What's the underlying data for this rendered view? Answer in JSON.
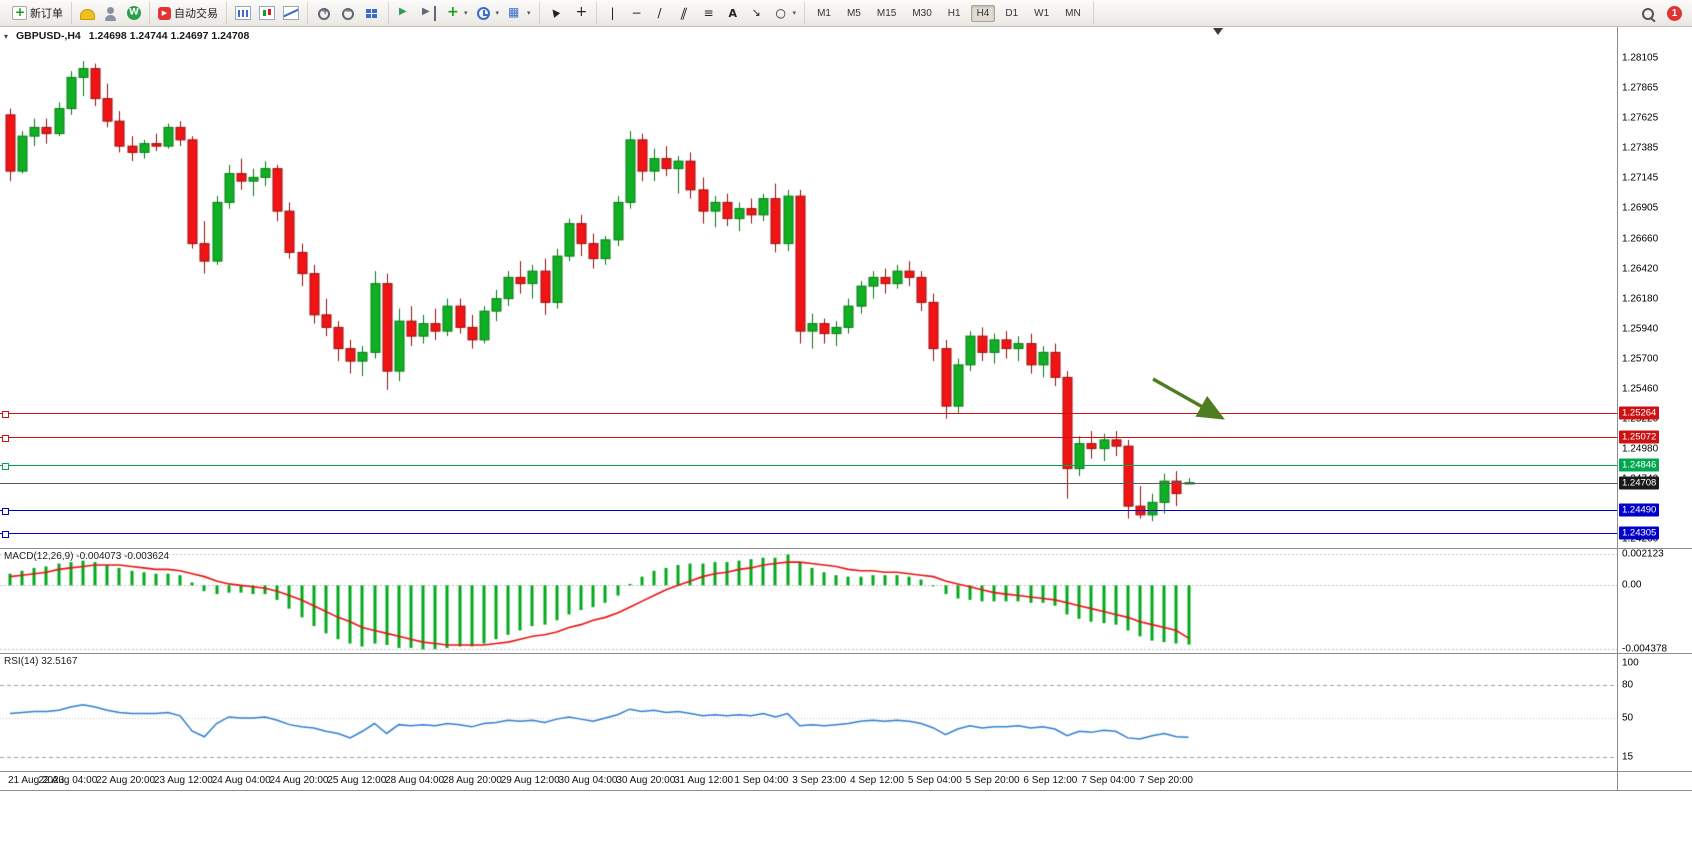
{
  "toolbar": {
    "groups": [
      [
        {
          "icon": "new-order-icon",
          "label": "新订单"
        }
      ],
      [
        {
          "icon": "hat-icon"
        },
        {
          "icon": "profile-icon"
        },
        {
          "icon": "community-icon"
        }
      ],
      [
        {
          "icon": "autotrade-icon",
          "label": "自动交易"
        }
      ],
      [
        {
          "icon": "chart-bars-icon"
        },
        {
          "icon": "chart-candles-icon"
        },
        {
          "icon": "chart-line-icon"
        }
      ],
      [
        {
          "icon": "zoom-in-icon"
        },
        {
          "icon": "zoom-out-icon"
        },
        {
          "icon": "tile-windows-icon"
        }
      ],
      [
        {
          "icon": "auto-scroll-icon"
        },
        {
          "icon": "chart-shift-icon"
        },
        {
          "icon": "indicators-icon",
          "caret": true
        },
        {
          "icon": "clock-icon",
          "caret": true
        },
        {
          "icon": "templates-icon",
          "caret": true
        }
      ],
      [
        {
          "icon": "cursor-icon"
        },
        {
          "icon": "crosshair-icon"
        }
      ],
      [
        {
          "icon": "vline-icon"
        },
        {
          "icon": "hline-icon"
        },
        {
          "icon": "trendline-icon"
        },
        {
          "icon": "channel-icon"
        },
        {
          "icon": "fibo-icon"
        },
        {
          "icon": "text-icon"
        },
        {
          "icon": "label-icon"
        },
        {
          "icon": "shapes-icon",
          "caret": true
        }
      ]
    ],
    "timeframes": {
      "items": [
        "M1",
        "M5",
        "M15",
        "M30",
        "H1",
        "H4",
        "D1",
        "W1",
        "MN"
      ],
      "active": "H4"
    },
    "search_icon": "search-icon",
    "badge": "1"
  },
  "chart_data": {
    "type": "candlestick",
    "symbol": "GBPUSD-",
    "timeframe": "H4",
    "title": "GBPUSD-,H4",
    "ohlc_text": "1.24698 1.24744 1.24697 1.24708",
    "price_ylim": [
      1.28353,
      1.24185
    ],
    "price_ticks": [
      "1.28105",
      "1.27865",
      "1.27625",
      "1.27385",
      "1.27145",
      "1.26905",
      "1.26660",
      "1.26420",
      "1.26180",
      "1.25940",
      "1.25700",
      "1.25460",
      "1.25220",
      "1.24980",
      "1.24740",
      "1.24500",
      "1.24260"
    ],
    "price_tags": [
      {
        "text": "1.25264",
        "bg": "#cc1111"
      },
      {
        "text": "1.25072",
        "bg": "#cc1111"
      },
      {
        "text": "1.24846",
        "bg": "#00a650"
      },
      {
        "text": "1.24708",
        "bg": "#1a1a1a"
      },
      {
        "text": "1.24490",
        "bg": "#0000c8"
      },
      {
        "text": "1.24305",
        "bg": "#0000c8"
      }
    ],
    "hlines": [
      {
        "price": 1.25264,
        "color": "#cc1111"
      },
      {
        "price": 1.25072,
        "color": "#cc1111"
      },
      {
        "price": 1.24846,
        "color": "#00a650"
      },
      {
        "price": 1.24708,
        "color": "#5a5a5a",
        "bid": true
      },
      {
        "price": 1.2449,
        "color": "#0000c8"
      },
      {
        "price": 1.24305,
        "color": "#0000c8"
      }
    ],
    "arrow_color": "#4e7c1e",
    "candles": [
      [
        1.2765,
        1.277,
        1.2712,
        1.272
      ],
      [
        1.272,
        1.2752,
        1.2718,
        1.2748
      ],
      [
        1.2748,
        1.2762,
        1.274,
        1.2755
      ],
      [
        1.2755,
        1.2762,
        1.2742,
        1.275
      ],
      [
        1.275,
        1.2775,
        1.2748,
        1.277
      ],
      [
        1.277,
        1.28,
        1.2765,
        1.2795
      ],
      [
        1.2795,
        1.2808,
        1.278,
        1.2802
      ],
      [
        1.2802,
        1.2806,
        1.2772,
        1.2778
      ],
      [
        1.2778,
        1.279,
        1.2755,
        1.276
      ],
      [
        1.276,
        1.2768,
        1.2735,
        1.274
      ],
      [
        1.274,
        1.2748,
        1.2728,
        1.2735
      ],
      [
        1.2735,
        1.2745,
        1.273,
        1.2742
      ],
      [
        1.2742,
        1.275,
        1.2736,
        1.274
      ],
      [
        1.274,
        1.2758,
        1.2738,
        1.2755
      ],
      [
        1.2755,
        1.276,
        1.274,
        1.2745
      ],
      [
        1.2745,
        1.2748,
        1.2658,
        1.2662
      ],
      [
        1.2662,
        1.268,
        1.2638,
        1.2648
      ],
      [
        1.2648,
        1.27,
        1.2645,
        1.2695
      ],
      [
        1.2695,
        1.2725,
        1.269,
        1.2718
      ],
      [
        1.2718,
        1.273,
        1.2705,
        1.2712
      ],
      [
        1.2712,
        1.2722,
        1.27,
        1.2715
      ],
      [
        1.2715,
        1.2728,
        1.2708,
        1.2722
      ],
      [
        1.2722,
        1.2725,
        1.268,
        1.2688
      ],
      [
        1.2688,
        1.2695,
        1.265,
        1.2655
      ],
      [
        1.2655,
        1.2662,
        1.2628,
        1.2638
      ],
      [
        1.2638,
        1.2645,
        1.2598,
        1.2605
      ],
      [
        1.2605,
        1.2618,
        1.2588,
        1.2595
      ],
      [
        1.2595,
        1.26,
        1.2568,
        1.2578
      ],
      [
        1.2578,
        1.2585,
        1.2558,
        1.2568
      ],
      [
        1.2568,
        1.258,
        1.2556,
        1.2575
      ],
      [
        1.2575,
        1.264,
        1.257,
        1.263
      ],
      [
        1.263,
        1.2638,
        1.2545,
        1.256
      ],
      [
        1.256,
        1.261,
        1.2552,
        1.26
      ],
      [
        1.26,
        1.2612,
        1.258,
        1.2588
      ],
      [
        1.2588,
        1.2605,
        1.2582,
        1.2598
      ],
      [
        1.2598,
        1.261,
        1.2585,
        1.2592
      ],
      [
        1.2592,
        1.2618,
        1.2588,
        1.2612
      ],
      [
        1.2612,
        1.2618,
        1.259,
        1.2595
      ],
      [
        1.2595,
        1.2605,
        1.2578,
        1.2585
      ],
      [
        1.2585,
        1.2612,
        1.2582,
        1.2608
      ],
      [
        1.2608,
        1.2625,
        1.26,
        1.2618
      ],
      [
        1.2618,
        1.264,
        1.2612,
        1.2635
      ],
      [
        1.2635,
        1.2648,
        1.2622,
        1.263
      ],
      [
        1.263,
        1.2645,
        1.2618,
        1.264
      ],
      [
        1.264,
        1.265,
        1.2605,
        1.2615
      ],
      [
        1.2615,
        1.2658,
        1.261,
        1.2652
      ],
      [
        1.2652,
        1.2682,
        1.2648,
        1.2678
      ],
      [
        1.2678,
        1.2685,
        1.2652,
        1.2662
      ],
      [
        1.2662,
        1.267,
        1.2642,
        1.265
      ],
      [
        1.265,
        1.2668,
        1.2645,
        1.2665
      ],
      [
        1.2665,
        1.27,
        1.266,
        1.2695
      ],
      [
        1.2695,
        1.2752,
        1.269,
        1.2745
      ],
      [
        1.2745,
        1.275,
        1.2712,
        1.272
      ],
      [
        1.272,
        1.2738,
        1.2712,
        1.273
      ],
      [
        1.273,
        1.274,
        1.2716,
        1.2722
      ],
      [
        1.2722,
        1.2732,
        1.2702,
        1.2728
      ],
      [
        1.2728,
        1.2735,
        1.2698,
        1.2705
      ],
      [
        1.2705,
        1.2715,
        1.2678,
        1.2688
      ],
      [
        1.2688,
        1.27,
        1.2675,
        1.2695
      ],
      [
        1.2695,
        1.2702,
        1.2676,
        1.2682
      ],
      [
        1.2682,
        1.2695,
        1.2672,
        1.269
      ],
      [
        1.269,
        1.2698,
        1.2678,
        1.2685
      ],
      [
        1.2685,
        1.2702,
        1.268,
        1.2698
      ],
      [
        1.2698,
        1.271,
        1.2655,
        1.2662
      ],
      [
        1.2662,
        1.2705,
        1.2656,
        1.27
      ],
      [
        1.27,
        1.2705,
        1.2582,
        1.2592
      ],
      [
        1.2592,
        1.2606,
        1.2578,
        1.2598
      ],
      [
        1.2598,
        1.2602,
        1.2582,
        1.259
      ],
      [
        1.259,
        1.26,
        1.258,
        1.2595
      ],
      [
        1.2595,
        1.2618,
        1.259,
        1.2612
      ],
      [
        1.2612,
        1.2632,
        1.2606,
        1.2628
      ],
      [
        1.2628,
        1.264,
        1.2618,
        1.2635
      ],
      [
        1.2635,
        1.2642,
        1.2622,
        1.263
      ],
      [
        1.263,
        1.2645,
        1.2626,
        1.264
      ],
      [
        1.264,
        1.2648,
        1.2628,
        1.2635
      ],
      [
        1.2635,
        1.264,
        1.2608,
        1.2615
      ],
      [
        1.2615,
        1.2622,
        1.2568,
        1.2578
      ],
      [
        1.2578,
        1.2585,
        1.2522,
        1.2532
      ],
      [
        1.2532,
        1.257,
        1.2526,
        1.2565
      ],
      [
        1.2565,
        1.2592,
        1.256,
        1.2588
      ],
      [
        1.2588,
        1.2595,
        1.2568,
        1.2575
      ],
      [
        1.2575,
        1.259,
        1.2566,
        1.2585
      ],
      [
        1.2585,
        1.2592,
        1.257,
        1.2578
      ],
      [
        1.2578,
        1.2588,
        1.2568,
        1.2582
      ],
      [
        1.2582,
        1.259,
        1.2558,
        1.2565
      ],
      [
        1.2565,
        1.258,
        1.2555,
        1.2575
      ],
      [
        1.2575,
        1.2582,
        1.2548,
        1.2555
      ],
      [
        1.2555,
        1.256,
        1.2458,
        1.2482
      ],
      [
        1.2482,
        1.2508,
        1.2476,
        1.2502
      ],
      [
        1.2502,
        1.2512,
        1.249,
        1.2498
      ],
      [
        1.2498,
        1.251,
        1.2488,
        1.2505
      ],
      [
        1.2505,
        1.2512,
        1.2492,
        1.25
      ],
      [
        1.25,
        1.2505,
        1.2442,
        1.2452
      ],
      [
        1.2452,
        1.2468,
        1.2442,
        1.2445
      ],
      [
        1.2445,
        1.2462,
        1.244,
        1.2455
      ],
      [
        1.2455,
        1.2478,
        1.2446,
        1.2472
      ],
      [
        1.2472,
        1.248,
        1.2452,
        1.2462
      ],
      [
        1.24698,
        1.24744,
        1.24697,
        1.24708
      ]
    ],
    "macd": {
      "label": "MACD(12,26,9) -0.004073 -0.003624",
      "axis": [
        "0.002123",
        "0.00",
        "-0.004378"
      ],
      "axis_values": [
        0.002123,
        0,
        -0.004378
      ],
      "ylim": [
        0.0025,
        -0.00465
      ],
      "histogram": [
        0.0008,
        0.001,
        0.0012,
        0.0013,
        0.0015,
        0.0016,
        0.0017,
        0.0016,
        0.0014,
        0.0012,
        0.001,
        0.0009,
        0.0008,
        0.0008,
        0.0007,
        0.0002,
        -0.0004,
        -0.0006,
        -0.0005,
        -0.0005,
        -0.0006,
        -0.0006,
        -0.001,
        -0.0016,
        -0.0022,
        -0.0028,
        -0.0033,
        -0.0037,
        -0.004,
        -0.0042,
        -0.004,
        -0.0041,
        -0.0043,
        -0.0043,
        -0.0044,
        -0.004378,
        -0.0043,
        -0.0042,
        -0.0042,
        -0.004,
        -0.0037,
        -0.0034,
        -0.0031,
        -0.0028,
        -0.0027,
        -0.0024,
        -0.002,
        -0.0017,
        -0.0015,
        -0.0012,
        -0.0007,
        0.0001,
        0.0006,
        0.001,
        0.0012,
        0.0014,
        0.0015,
        0.0015,
        0.0016,
        0.0016,
        0.0017,
        0.0018,
        0.0019,
        0.0019,
        0.002123,
        0.0016,
        0.0012,
        0.0009,
        0.0007,
        0.0006,
        0.0006,
        0.0007,
        0.0007,
        0.0007,
        0.0006,
        0.0004,
        0.0,
        -0.0006,
        -0.0009,
        -0.001,
        -0.0011,
        -0.0011,
        -0.0011,
        -0.0011,
        -0.0012,
        -0.0012,
        -0.0014,
        -0.002,
        -0.0023,
        -0.0025,
        -0.0026,
        -0.0027,
        -0.0031,
        -0.0035,
        -0.0038,
        -0.0039,
        -0.004,
        -0.004073
      ],
      "signal": [
        0.0006,
        0.0007,
        0.0008,
        0.0009,
        0.0011,
        0.0012,
        0.0013,
        0.0014,
        0.0014,
        0.0014,
        0.0013,
        0.0012,
        0.0011,
        0.0011,
        0.001,
        0.0008,
        0.0006,
        0.0003,
        0.0001,
        0.0,
        -0.0001,
        -0.0002,
        -0.0004,
        -0.0007,
        -0.001,
        -0.0014,
        -0.0018,
        -0.0022,
        -0.0025,
        -0.0029,
        -0.0031,
        -0.0033,
        -0.0035,
        -0.0037,
        -0.0039,
        -0.004,
        -0.0041,
        -0.0041,
        -0.0041,
        -0.0041,
        -0.004,
        -0.0039,
        -0.0037,
        -0.0035,
        -0.0034,
        -0.0032,
        -0.0029,
        -0.0027,
        -0.0024,
        -0.0022,
        -0.0019,
        -0.0015,
        -0.0011,
        -0.0007,
        -0.0003,
        0.0,
        0.0003,
        0.0006,
        0.0008,
        0.0009,
        0.0011,
        0.0012,
        0.0014,
        0.0015,
        0.0016,
        0.0016,
        0.0015,
        0.0014,
        0.0013,
        0.0011,
        0.001,
        0.001,
        0.0009,
        0.0009,
        0.0008,
        0.0007,
        0.0006,
        0.0003,
        0.0001,
        -0.0001,
        -0.0003,
        -0.0005,
        -0.0006,
        -0.0007,
        -0.0008,
        -0.0009,
        -0.001,
        -0.0012,
        -0.0014,
        -0.0016,
        -0.0018,
        -0.002,
        -0.0022,
        -0.0025,
        -0.0027,
        -0.0029,
        -0.0031,
        -0.003624
      ]
    },
    "rsi": {
      "label": "RSI(14) 32.5167",
      "axis": [
        "100",
        "80",
        "50",
        "15"
      ],
      "axis_values": [
        100,
        80,
        50,
        15
      ],
      "levels": [
        80,
        50,
        15
      ],
      "ylim": [
        108,
        2
      ],
      "values": [
        54,
        55,
        56,
        56,
        57,
        60,
        62,
        60,
        57,
        55,
        54,
        54,
        54,
        55,
        52,
        38,
        33,
        45,
        51,
        50,
        50,
        51,
        48,
        44,
        42,
        41,
        38,
        36,
        32,
        38,
        45,
        36,
        44,
        43,
        44,
        43,
        45,
        44,
        42,
        45,
        46,
        48,
        47,
        48,
        46,
        49,
        51,
        49,
        47,
        50,
        53,
        58,
        56,
        57,
        55,
        56,
        54,
        52,
        53,
        52,
        53,
        52,
        54,
        51,
        54,
        43,
        44,
        43,
        44,
        45,
        47,
        48,
        47,
        48,
        47,
        45,
        41,
        35,
        40,
        43,
        41,
        42,
        42,
        43,
        41,
        42,
        40,
        34,
        38,
        37,
        39,
        38,
        32,
        31,
        34,
        36,
        33,
        32.5
      ]
    },
    "time_labels": [
      "21 Aug 2023",
      "22 Aug 04:00",
      "22 Aug 20:00",
      "23 Aug 12:00",
      "24 Aug 04:00",
      "24 Aug 20:00",
      "25 Aug 12:00",
      "28 Aug 04:00",
      "28 Aug 20:00",
      "29 Aug 12:00",
      "30 Aug 04:00",
      "30 Aug 20:00",
      "31 Aug 12:00",
      "1 Sep 04:00",
      "3 Sep 23:00",
      "4 Sep 12:00",
      "5 Sep 04:00",
      "5 Sep 20:00",
      "6 Sep 12:00",
      "7 Sep 04:00",
      "7 Sep 20:00"
    ]
  }
}
